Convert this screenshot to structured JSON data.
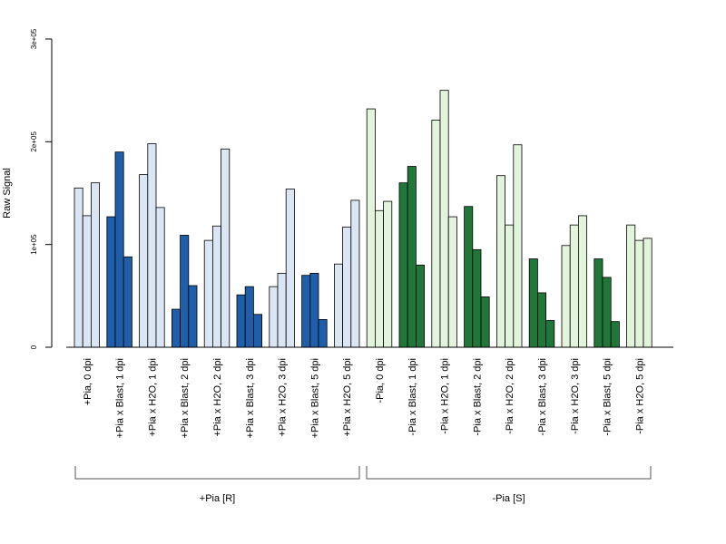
{
  "chart_data": {
    "type": "bar",
    "ylabel": "Raw Signal",
    "ylim": [
      0,
      300000
    ],
    "yticks": [
      0,
      100000,
      200000,
      300000
    ],
    "ytick_labels": [
      "0",
      "1e+05",
      "2e+05",
      "3e+05"
    ],
    "grid": false,
    "colors": {
      "light_blue": "#dbe6f5",
      "dark_blue": "#1f5ea8",
      "light_green": "#e3f4dc",
      "dark_green": "#21773a",
      "edge": "#000000"
    },
    "categories": [
      "+Pia, 0 dpi",
      "+Pia x Blast, 1 dpi",
      "+Pia x H2O, 1 dpi",
      "+Pia x Blast, 2 dpi",
      "+Pia x H2O, 2 dpi",
      "+Pia x Blast, 3 dpi",
      "+Pia x H2O, 3 dpi",
      "+Pia x Blast, 5 dpi",
      "+Pia x H2O, 5 dpi",
      "-Pia, 0 dpi",
      "-Pia x Blast, 1 dpi",
      "-Pia x H2O, 1 dpi",
      "-Pia x Blast, 2 dpi",
      "-Pia x H2O, 2 dpi",
      "-Pia x Blast, 3 dpi",
      "-Pia x H2O, 3 dpi",
      "-Pia x Blast, 5 dpi",
      "-Pia x H2O, 5 dpi"
    ],
    "category_colors": [
      "light_blue",
      "dark_blue",
      "light_blue",
      "dark_blue",
      "light_blue",
      "dark_blue",
      "light_blue",
      "dark_blue",
      "light_blue",
      "light_green",
      "dark_green",
      "light_green",
      "dark_green",
      "light_green",
      "dark_green",
      "light_green",
      "dark_green",
      "light_green"
    ],
    "values": [
      [
        155000,
        128000,
        160000
      ],
      [
        127000,
        190000,
        88000
      ],
      [
        168000,
        198000,
        136000
      ],
      [
        37000,
        109000,
        60000
      ],
      [
        104000,
        118000,
        193000
      ],
      [
        51000,
        59000,
        32000
      ],
      [
        59000,
        72000,
        154000
      ],
      [
        70000,
        72000,
        27000
      ],
      [
        81000,
        117000,
        143000
      ],
      [
        232000,
        133000,
        142000
      ],
      [
        160000,
        176000,
        80000
      ],
      [
        221000,
        250000,
        127000
      ],
      [
        137000,
        95000,
        49000
      ],
      [
        167000,
        119000,
        197000
      ],
      [
        86000,
        53000,
        26000
      ],
      [
        99000,
        119000,
        128000
      ],
      [
        86000,
        68000,
        25000
      ],
      [
        119000,
        104000,
        106000
      ]
    ],
    "groups": [
      {
        "label": "+Pia [R]",
        "from": 0,
        "to": 8
      },
      {
        "label": "-Pia [S]",
        "from": 9,
        "to": 17
      }
    ]
  }
}
